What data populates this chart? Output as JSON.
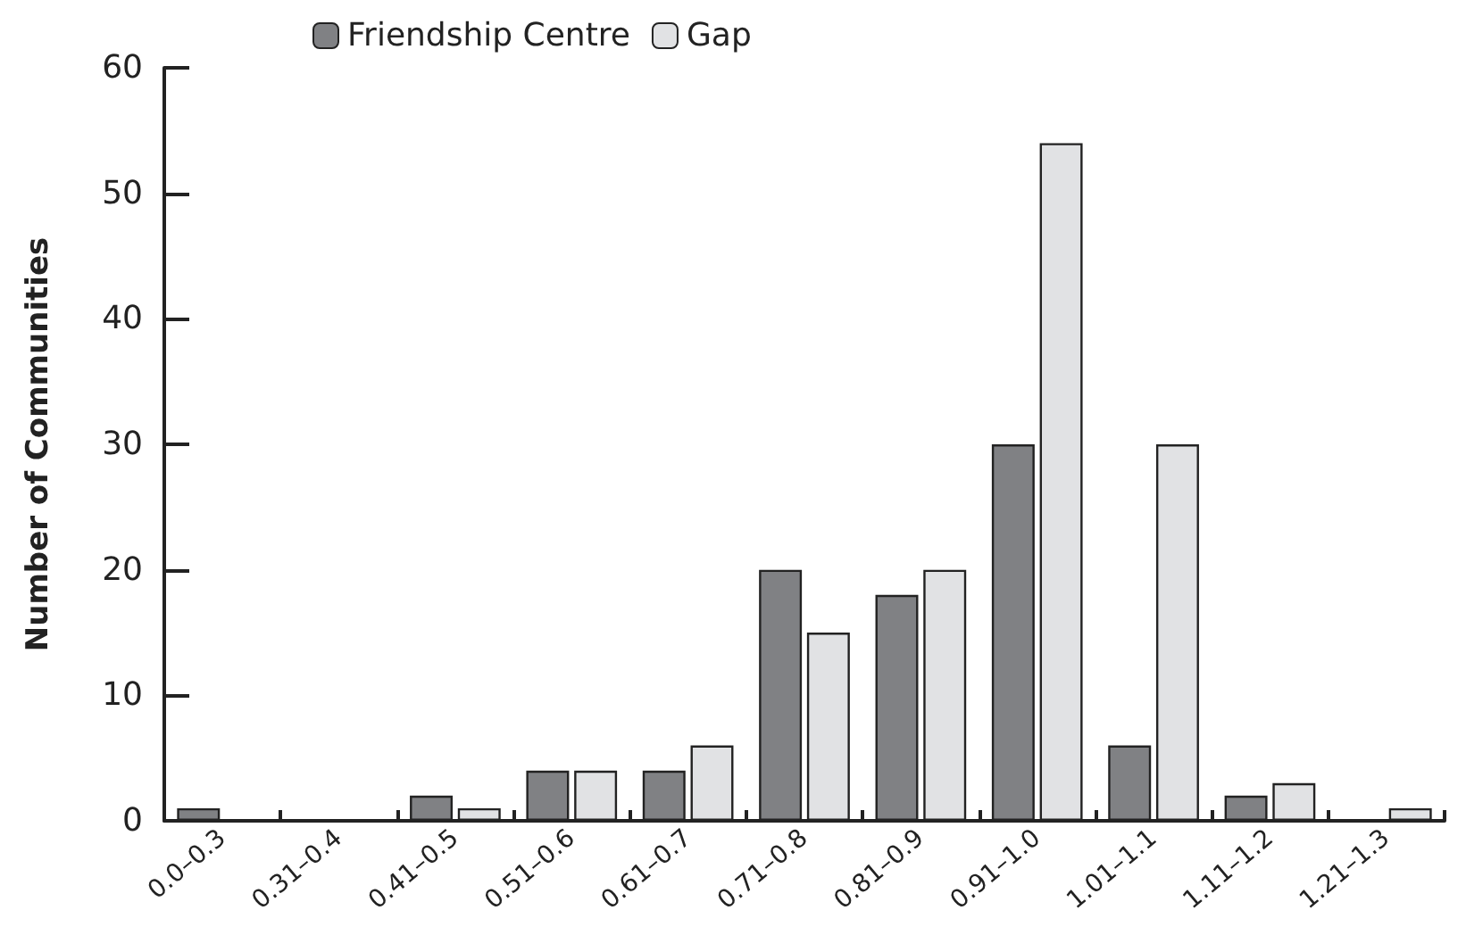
{
  "chart_data": {
    "type": "bar",
    "ylabel": "Number of Communities",
    "categories": [
      "0.0–0.3",
      "0.31–0.4",
      "0.41–0.5",
      "0.51–0.6",
      "0.61–0.7",
      "0.71–0.8",
      "0.81–0.9",
      "0.91–1.0",
      "1.01–1.1",
      "1.11–1.2",
      "1.21–1.3"
    ],
    "series": [
      {
        "name": "Friendship Centre",
        "color": "#808184",
        "values": [
          1,
          0,
          2,
          4,
          4,
          20,
          18,
          30,
          6,
          2,
          0
        ]
      },
      {
        "name": "Gap",
        "color": "#e1e2e4",
        "values": [
          0,
          0,
          1,
          4,
          6,
          15,
          20,
          54,
          30,
          3,
          1
        ]
      }
    ],
    "ylim": [
      0,
      60
    ],
    "yticks": [
      0,
      10,
      20,
      30,
      40,
      50,
      60
    ],
    "grid": false,
    "legend": "top left"
  }
}
